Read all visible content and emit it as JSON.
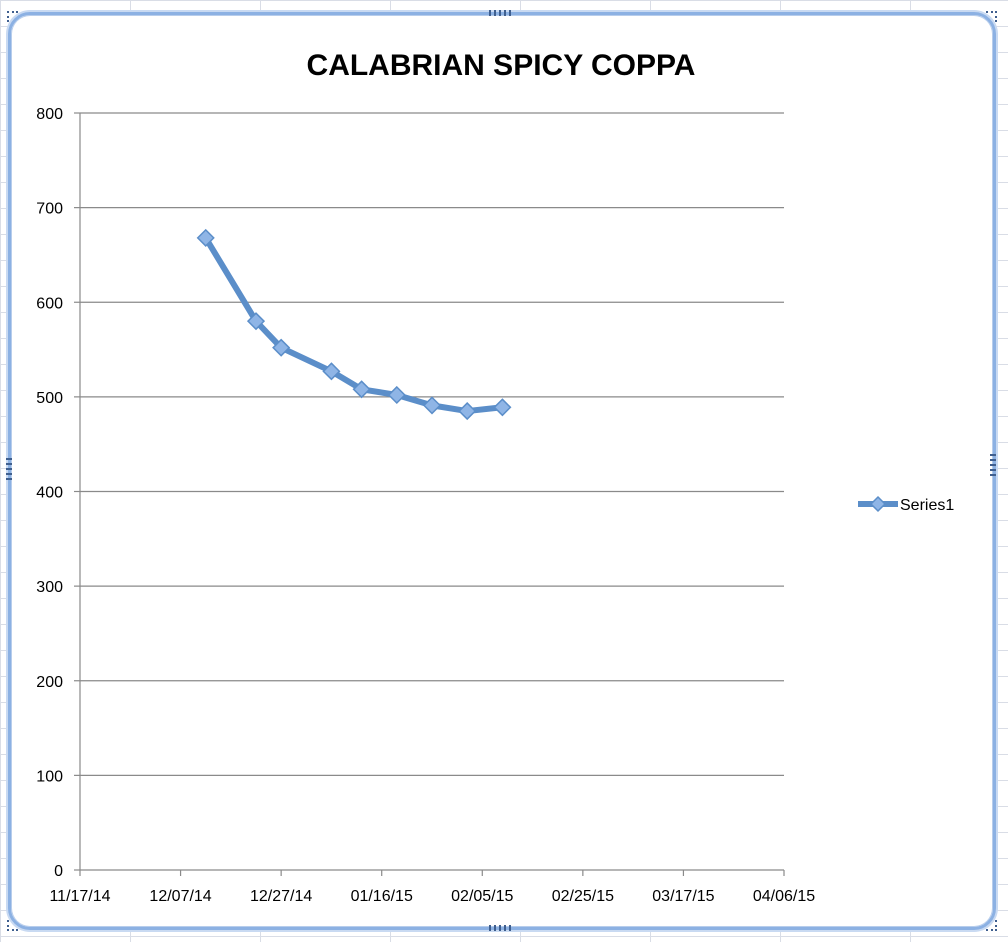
{
  "chart_data": {
    "type": "line",
    "title": "CALABRIAN SPICY COPPA",
    "xlabel": "",
    "ylabel": "",
    "x_axis": {
      "scale": "date",
      "range": [
        "11/17/14",
        "04/06/15"
      ],
      "tick_labels": [
        "11/17/14",
        "12/07/14",
        "12/27/14",
        "01/16/15",
        "02/05/15",
        "02/25/15",
        "03/17/15",
        "04/06/15"
      ]
    },
    "y_axis": {
      "range": [
        0,
        800
      ],
      "tick_labels": [
        "0",
        "100",
        "200",
        "300",
        "400",
        "500",
        "600",
        "700",
        "800"
      ]
    },
    "grid": "horizontal",
    "legend": {
      "position": "right",
      "entries": [
        "Series1"
      ]
    },
    "series": [
      {
        "name": "Series1",
        "color": "#5b8ec9",
        "marker": "diamond",
        "points": [
          {
            "x": "12/12/14",
            "y": 668
          },
          {
            "x": "12/22/14",
            "y": 580
          },
          {
            "x": "12/27/14",
            "y": 552
          },
          {
            "x": "01/06/15",
            "y": 527
          },
          {
            "x": "01/12/15",
            "y": 508
          },
          {
            "x": "01/19/15",
            "y": 502
          },
          {
            "x": "01/26/15",
            "y": 491
          },
          {
            "x": "02/02/15",
            "y": 485
          },
          {
            "x": "02/09/15",
            "y": 489
          }
        ]
      }
    ]
  }
}
